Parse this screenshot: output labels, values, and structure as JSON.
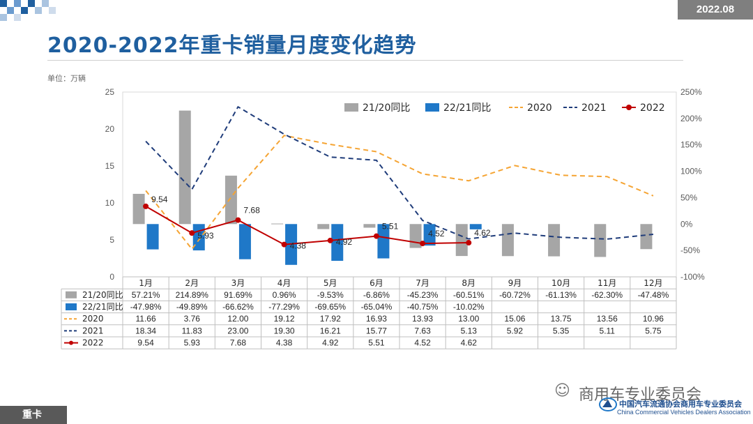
{
  "header": {
    "date": "2022.08",
    "title": "2020-2022年重卡销量月度变化趋势",
    "unit": "单位：万辆"
  },
  "footer": {
    "tab": "重卡",
    "watermark_text": "商用车专业委员会",
    "org_cn": "中国汽车流通协会商用车专业委员会",
    "org_en": "China Commercial Vehicles Dealers Association"
  },
  "colors": {
    "title": "#1f5f9f",
    "gray_bar": "#a6a6a6",
    "blue_bar": "#1f78c8",
    "line2020": "#f5a433",
    "line2021": "#1f3c7a",
    "line2022": "#c00000"
  },
  "chart_data": {
    "type": "bar+line",
    "categories": [
      "1月",
      "2月",
      "3月",
      "4月",
      "5月",
      "6月",
      "7月",
      "8月",
      "9月",
      "10月",
      "11月",
      "12月"
    ],
    "left_axis": {
      "min": 0,
      "max": 25,
      "ticks": [
        "0",
        "5",
        "10",
        "15",
        "20",
        "25"
      ]
    },
    "right_axis": {
      "min": -100,
      "max": 250,
      "ticks": [
        "-100%",
        "-50%",
        "0%",
        "50%",
        "100%",
        "150%",
        "200%",
        "250%"
      ]
    },
    "bar_series": [
      {
        "name": "21/20同比",
        "axis": "right",
        "values": [
          57.21,
          214.89,
          91.69,
          0.96,
          -9.53,
          -6.86,
          -45.23,
          -60.51,
          -60.72,
          -61.13,
          -62.3,
          -47.48
        ],
        "labels": [
          "57.21%",
          "214.89%",
          "91.69%",
          "0.96%",
          "-9.53%",
          "-6.86%",
          "-45.23%",
          "-60.51%",
          "-60.72%",
          "-61.13%",
          "-62.30%",
          "-47.48%"
        ]
      },
      {
        "name": "22/21同比",
        "axis": "right",
        "values": [
          -47.98,
          -49.89,
          -66.62,
          -77.29,
          -69.65,
          -65.04,
          -40.75,
          -10.02,
          null,
          null,
          null,
          null
        ],
        "labels": [
          "-47.98%",
          "-49.89%",
          "-66.62%",
          "-77.29%",
          "-69.65%",
          "-65.04%",
          "-40.75%",
          "-10.02%",
          "",
          "",
          "",
          ""
        ]
      }
    ],
    "line_series": [
      {
        "name": "2020",
        "axis": "left",
        "values": [
          11.66,
          3.76,
          12.0,
          19.12,
          17.92,
          16.93,
          13.93,
          13.0,
          15.06,
          13.75,
          13.56,
          10.96
        ],
        "labels": [
          "11.66",
          "3.76",
          "12.00",
          "19.12",
          "17.92",
          "16.93",
          "13.93",
          "13.00",
          "15.06",
          "13.75",
          "13.56",
          "10.96"
        ]
      },
      {
        "name": "2021",
        "axis": "left",
        "values": [
          18.34,
          11.83,
          23.0,
          19.3,
          16.21,
          15.77,
          7.63,
          5.13,
          5.92,
          5.35,
          5.11,
          5.75
        ],
        "labels": [
          "18.34",
          "11.83",
          "23.00",
          "19.30",
          "16.21",
          "15.77",
          "7.63",
          "5.13",
          "5.92",
          "5.35",
          "5.11",
          "5.75"
        ]
      },
      {
        "name": "2022",
        "axis": "left",
        "values": [
          9.54,
          5.93,
          7.68,
          4.38,
          4.92,
          5.51,
          4.52,
          4.62,
          null,
          null,
          null,
          null
        ],
        "labels": [
          "9.54",
          "5.93",
          "7.68",
          "4.38",
          "4.92",
          "5.51",
          "4.52",
          "4.62",
          "",
          "",
          "",
          ""
        ]
      }
    ],
    "legend": [
      "21/20同比",
      "22/21同比",
      "2020",
      "2021",
      "2022"
    ],
    "legend_position": "top-right"
  }
}
